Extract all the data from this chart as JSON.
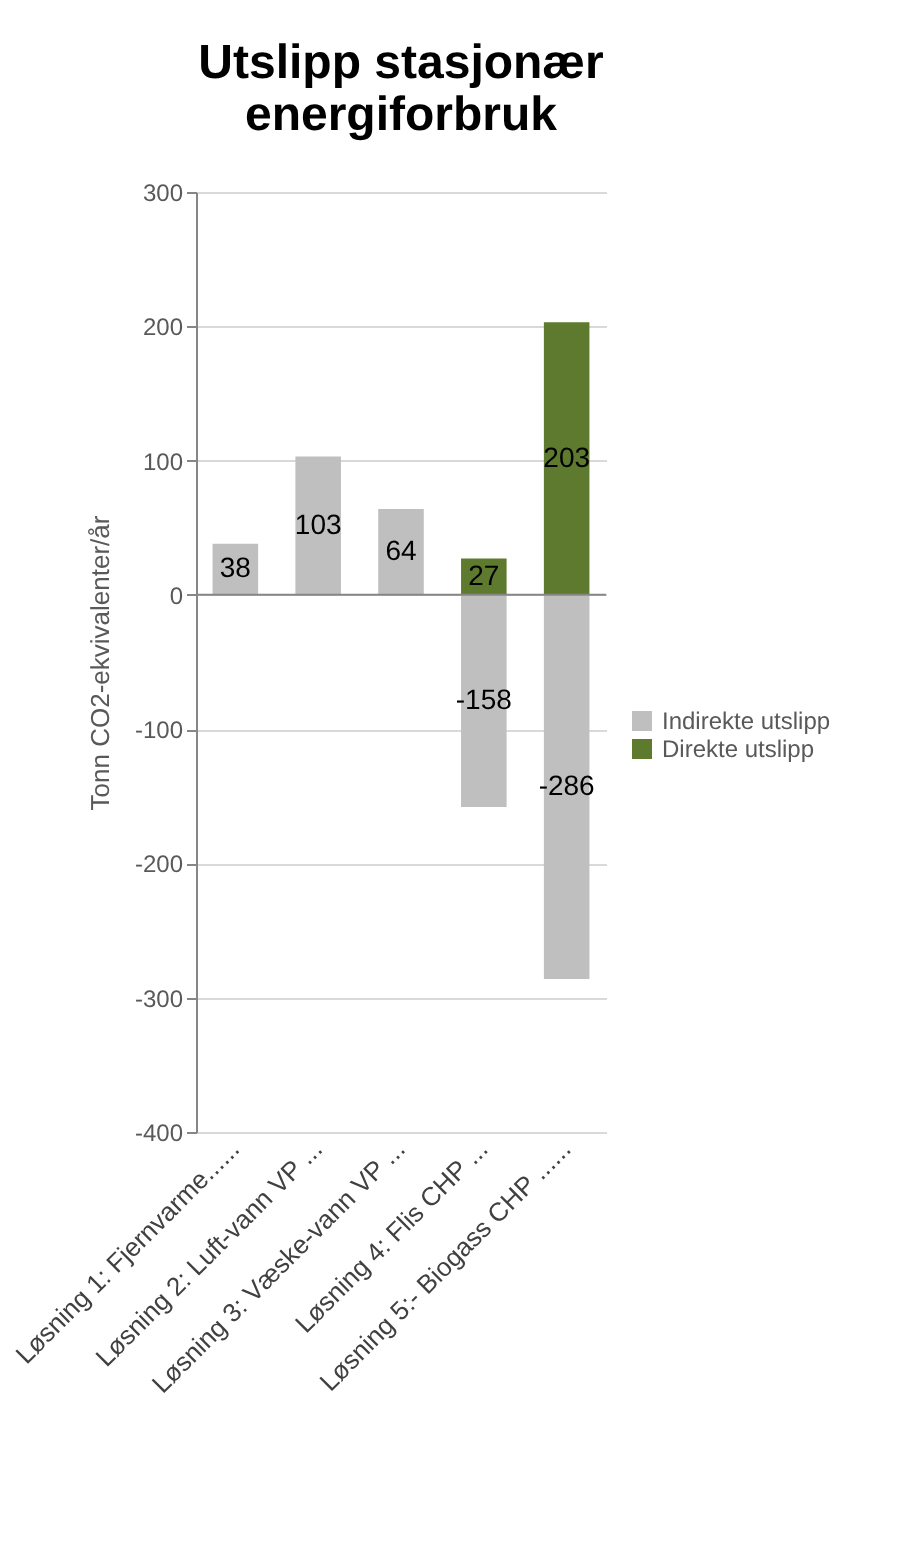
{
  "chart_data": {
    "type": "bar",
    "title": "Utslipp stasjonær energiforbruk",
    "ylabel": "Tonn CO2-ekvivalenter/år",
    "categories": [
      "Løsning 1: Fjernvarme......",
      "Løsning 2: Luft-vann VP ...",
      "Løsning 3: Væske-vann VP ...",
      "Løsning 4: Flis CHP ...",
      "Løsning 5:- Biogass CHP ......"
    ],
    "series": [
      {
        "name": "Indirekte utslipp",
        "color": "#bfbfbf",
        "values": [
          38,
          103,
          64,
          -158,
          -286
        ]
      },
      {
        "name": "Direkte utslipp",
        "color": "#5e7a2e",
        "values": [
          null,
          null,
          null,
          27,
          203
        ]
      }
    ],
    "stacked": true,
    "ylim": [
      -400,
      300
    ],
    "yticks": [
      -400,
      -300,
      -200,
      -100,
      0,
      100,
      200,
      300
    ],
    "grid": "y",
    "legend": "right",
    "data_labels": true
  }
}
